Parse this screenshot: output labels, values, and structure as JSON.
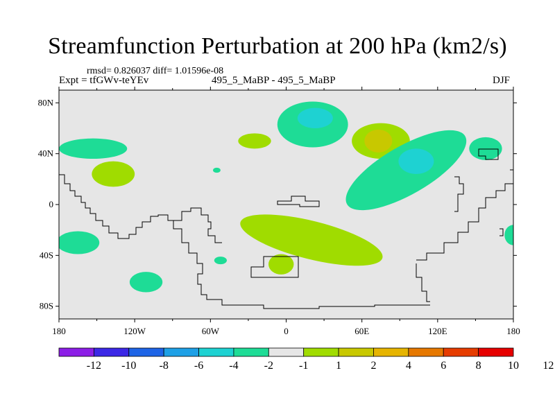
{
  "title": "Streamfunction Perturbation at 200 hPa (km2/s)",
  "stats_line": "rmsd= 0.826037 diff= 1.01596e-08",
  "expt_label": "Expt = tfGWv-teYEv",
  "cases_label": "495_5_MaBP - 495_5_MaBP",
  "season_label": "DJF",
  "colors": {
    "background_zero": "#e6e6e6",
    "neg1": "#1edc96",
    "neg2": "#1ed2d2",
    "pos1": "#a0dc00",
    "pos2": "#c8c800",
    "coast": "#000000"
  },
  "chart_data": {
    "type": "heatmap",
    "projection": "cylindrical equidistant",
    "xlim": [
      -180,
      180
    ],
    "ylim": [
      -90,
      90
    ],
    "x_ticks": [
      {
        "value": -180,
        "label": "180"
      },
      {
        "value": -120,
        "label": "120W"
      },
      {
        "value": -60,
        "label": "60W"
      },
      {
        "value": 0,
        "label": "0"
      },
      {
        "value": 60,
        "label": "60E"
      },
      {
        "value": 120,
        "label": "120E"
      },
      {
        "value": 180,
        "label": "180"
      }
    ],
    "y_ticks": [
      {
        "value": 80,
        "label": "80N"
      },
      {
        "value": 40,
        "label": "40N"
      },
      {
        "value": 0,
        "label": "0"
      },
      {
        "value": -40,
        "label": "40S"
      },
      {
        "value": -80,
        "label": "80S"
      }
    ],
    "colorbar": {
      "colors": [
        "#8c1ee6",
        "#3c28e6",
        "#1e64e6",
        "#1ea0e6",
        "#1ed2d2",
        "#1edc96",
        "#e6e6e6",
        "#a0dc00",
        "#c8c800",
        "#e6b400",
        "#e67800",
        "#e63c00",
        "#e60000"
      ],
      "labels": [
        "-12",
        "-10",
        "-8",
        "-6",
        "-4",
        "-2",
        "-1",
        "1",
        "2",
        "4",
        "6",
        "8",
        "10",
        "12"
      ]
    },
    "contour_regions": [
      {
        "name": "north-pacific-neg",
        "level": "neg1",
        "center": [
          -153,
          44
        ],
        "radius": [
          27,
          8
        ]
      },
      {
        "name": "north-pacific-pos",
        "level": "pos1",
        "center": [
          -137,
          24
        ],
        "radius": [
          17,
          10
        ]
      },
      {
        "name": "kamchatka-neg",
        "level": "neg1",
        "center": [
          158,
          44
        ],
        "radius": [
          13,
          9
        ]
      },
      {
        "name": "east-pacific-dot",
        "level": "neg1",
        "center": [
          -55,
          27
        ],
        "radius": [
          3,
          2
        ]
      },
      {
        "name": "north-atlantic-pos",
        "level": "pos1",
        "center": [
          -25,
          50
        ],
        "radius": [
          13,
          6
        ]
      },
      {
        "name": "north-atlantic-neg",
        "level": "neg1",
        "center": [
          21,
          63
        ],
        "radius": [
          28,
          18
        ]
      },
      {
        "name": "north-atlantic-core",
        "level": "neg2",
        "center": [
          23,
          68
        ],
        "radius": [
          14,
          8
        ]
      },
      {
        "name": "europe-pos",
        "level": "pos1",
        "center": [
          75,
          50
        ],
        "radius": [
          23,
          14
        ]
      },
      {
        "name": "europe-core",
        "level": "pos2",
        "center": [
          73,
          50
        ],
        "radius": [
          11,
          9
        ]
      },
      {
        "name": "asia-neg",
        "level": "neg1",
        "center": [
          95,
          27
        ],
        "radius": [
          54,
          19
        ],
        "rotate": -30
      },
      {
        "name": "asia-core",
        "level": "neg2",
        "center": [
          103,
          34
        ],
        "radius": [
          14,
          10
        ]
      },
      {
        "name": "equatorial-pos",
        "level": "pos1",
        "center": [
          20,
          -28
        ],
        "radius": [
          58,
          15
        ],
        "rotate": 14
      },
      {
        "name": "south-atlantic-pos",
        "level": "pos1",
        "center": [
          -4,
          -47
        ],
        "radius": [
          10,
          8
        ]
      },
      {
        "name": "south-pacific-neg-west",
        "level": "neg1",
        "center": [
          -165,
          -30
        ],
        "radius": [
          17,
          9
        ]
      },
      {
        "name": "south-pacific-neg-east",
        "level": "neg1",
        "center": [
          -111,
          -61
        ],
        "radius": [
          13,
          8
        ]
      },
      {
        "name": "south-atlantic-dot",
        "level": "neg1",
        "center": [
          -52,
          -44
        ],
        "radius": [
          5,
          3
        ]
      },
      {
        "name": "dateline-east-neg",
        "level": "neg1",
        "center": [
          180,
          -24
        ],
        "radius": [
          7,
          8
        ]
      }
    ]
  }
}
